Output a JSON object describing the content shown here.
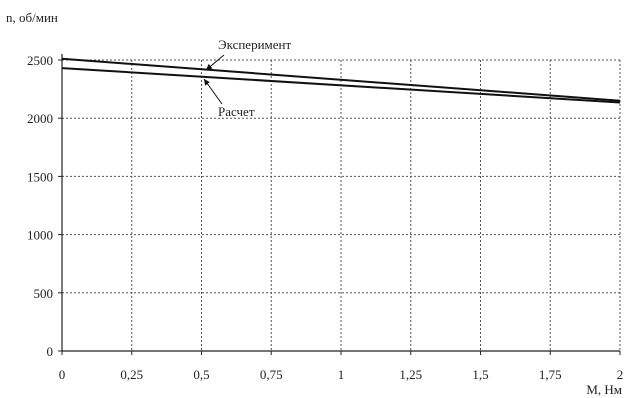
{
  "chart_data": {
    "type": "line",
    "title": "",
    "ylabel": "n, об/мин",
    "xlabel": "М, Нм",
    "xlim": [
      0,
      2
    ],
    "ylim": [
      0,
      2500
    ],
    "x_ticks": [
      0,
      0.25,
      0.5,
      0.75,
      1,
      1.25,
      1.5,
      1.75,
      2
    ],
    "x_tick_labels": [
      "0",
      "0,25",
      "0,5",
      "0,75",
      "1",
      "1,25",
      "1,5",
      "1,75",
      "2"
    ],
    "y_ticks": [
      0,
      500,
      1000,
      1500,
      2000,
      2500
    ],
    "y_tick_labels": [
      "0",
      "500",
      "1000",
      "1500",
      "2000",
      "2500"
    ],
    "grid": true,
    "legend": "none",
    "series": [
      {
        "name": "Эксперимент",
        "x": [
          0,
          2
        ],
        "y": [
          2510,
          2150
        ]
      },
      {
        "name": "Расчет",
        "x": [
          0,
          2
        ],
        "y": [
          2430,
          2135
        ]
      }
    ],
    "annotations": [
      {
        "text": "Эксперимент",
        "series": 0
      },
      {
        "text": "Расчет",
        "series": 1
      }
    ],
    "colors": {
      "line": "#111111",
      "grid": "#555555",
      "axis": "#222222"
    }
  }
}
